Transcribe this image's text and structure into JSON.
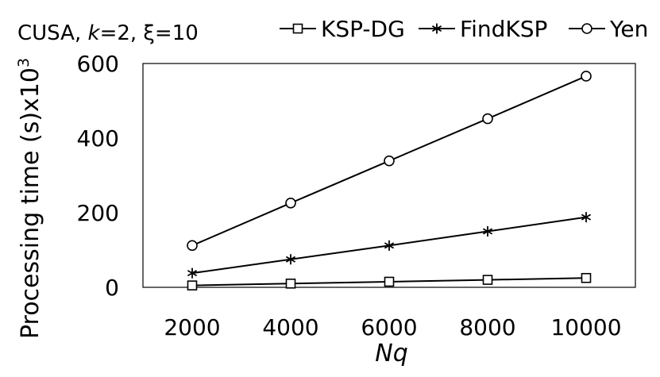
{
  "chart_data": {
    "type": "line",
    "title_parts": {
      "prefix": "CUSA,  ",
      "k_symbol": "k",
      "k_value": "=2, ξ=10"
    },
    "xlabel": "Nq",
    "ylabel": "Processing time (s)x10",
    "ylabel_exponent": "3",
    "x": [
      2000,
      4000,
      6000,
      8000,
      10000
    ],
    "xlim": [
      1000,
      11000
    ],
    "ylim": [
      0,
      600
    ],
    "x_ticks": [
      "2000",
      "4000",
      "6000",
      "8000",
      "10000"
    ],
    "y_ticks": [
      "0",
      "200",
      "400",
      "600"
    ],
    "grid": false,
    "legend_position": "top",
    "series": [
      {
        "name": "KSP-DG",
        "marker": "square",
        "values": [
          5,
          10,
          15,
          20,
          25
        ]
      },
      {
        "name": "FindKSP",
        "marker": "asterisk",
        "values": [
          38,
          75,
          112,
          150,
          188
        ]
      },
      {
        "name": "Yen",
        "marker": "circle",
        "values": [
          112,
          226,
          339,
          452,
          566
        ]
      }
    ],
    "colors": {
      "line": "#000000",
      "marker_fill": "#ffffff"
    }
  }
}
